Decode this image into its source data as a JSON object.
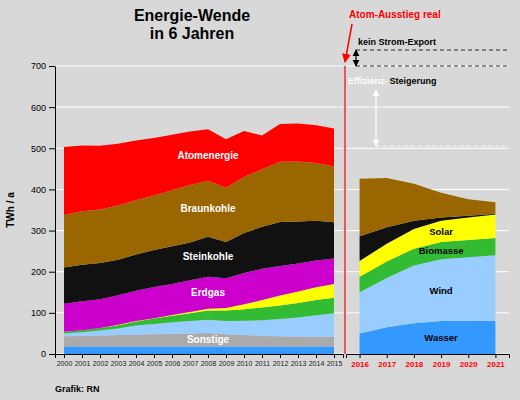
{
  "chart_data": [
    {
      "type": "area",
      "stacked": true,
      "title": "Energie-Wende\nin 6 Jahren",
      "ylabel": "TWh / a",
      "x": [
        2000,
        2001,
        2002,
        2003,
        2004,
        2005,
        2006,
        2007,
        2008,
        2009,
        2010,
        2011,
        2012,
        2013,
        2014,
        2015
      ],
      "xlim": [
        1999.5,
        2015.5
      ],
      "xticks": [
        2000,
        2001,
        2002,
        2003,
        2004,
        2005,
        2006,
        2007,
        2008,
        2009,
        2010,
        2011,
        2012,
        2013,
        2014,
        2015
      ],
      "ylim": [
        0,
        700
      ],
      "yticks": [
        0,
        100,
        200,
        300,
        400,
        500,
        600,
        700
      ],
      "grid": true,
      "series": [
        {
          "color": "#3399ff",
          "values": [
            18,
            18,
            18,
            18,
            18,
            18,
            18,
            18,
            18,
            18,
            18,
            18,
            18,
            18,
            18,
            18
          ]
        },
        {
          "name": "Sonstige",
          "color": "#aaaaaa",
          "values": [
            25,
            26,
            27,
            28,
            29,
            30,
            31,
            32,
            33,
            30,
            28,
            26,
            25,
            24,
            24,
            24
          ]
        },
        {
          "color": "#99ccff",
          "values": [
            7,
            9,
            12,
            16,
            22,
            25,
            28,
            30,
            32,
            32,
            35,
            38,
            42,
            47,
            52,
            57
          ]
        },
        {
          "color": "#33bb33",
          "values": [
            4,
            5,
            6,
            8,
            10,
            13,
            16,
            19,
            23,
            26,
            28,
            31,
            33,
            35,
            37,
            38
          ]
        },
        {
          "color": "#ffff00",
          "values": [
            0,
            0,
            0,
            1,
            1,
            1,
            2,
            3,
            4,
            6,
            12,
            18,
            24,
            28,
            31,
            33
          ]
        },
        {
          "name": "Erdgas",
          "color": "#cc00cc",
          "values": [
            68,
            70,
            70,
            72,
            74,
            76,
            75,
            77,
            78,
            72,
            76,
            76,
            72,
            68,
            65,
            62
          ]
        },
        {
          "name": "Steinkohle",
          "color": "#111111",
          "values": [
            88,
            89,
            88,
            86,
            88,
            90,
            92,
            92,
            97,
            88,
            97,
            102,
            107,
            102,
            97,
            88
          ]
        },
        {
          "name": "Braunkohle",
          "color": "#996600",
          "values": [
            128,
            130,
            130,
            132,
            132,
            132,
            136,
            140,
            136,
            132,
            136,
            140,
            146,
            146,
            140,
            136
          ]
        },
        {
          "name": "Atomenergie",
          "color": "#ff0000",
          "values": [
            165,
            160,
            155,
            150,
            145,
            140,
            135,
            130,
            125,
            118,
            112,
            82,
            92,
            92,
            92,
            92
          ]
        }
      ],
      "annotations": [
        "Grafik: RN"
      ]
    },
    {
      "type": "area",
      "stacked": true,
      "x": [
        2016,
        2017,
        2018,
        2019,
        2020,
        2021
      ],
      "xlim": [
        2015.5,
        2021.5
      ],
      "xticks": [
        2016,
        2017,
        2018,
        2019,
        2020,
        2021
      ],
      "ylim": [
        0,
        700
      ],
      "yticks": [
        0,
        100,
        200,
        300,
        400,
        500,
        600,
        700
      ],
      "grid": true,
      "tick_labels": "x",
      "series": [
        {
          "name": "Wasser",
          "color": "#3399ff",
          "values": [
            50,
            65,
            75,
            80,
            80,
            80
          ]
        },
        {
          "name": "Wind",
          "color": "#99ccff",
          "values": [
            100,
            120,
            140,
            150,
            155,
            160
          ]
        },
        {
          "name": "Biomasse",
          "color": "#33bb33",
          "values": [
            38,
            40,
            41,
            42,
            42,
            42
          ]
        },
        {
          "name": "Solar",
          "color": "#ffff00",
          "values": [
            38,
            43,
            48,
            52,
            55,
            57
          ]
        },
        {
          "color": "#111111",
          "values": [
            60,
            40,
            20,
            8,
            4,
            2
          ]
        },
        {
          "color": "#996600",
          "values": [
            140,
            120,
            90,
            60,
            40,
            28
          ]
        }
      ],
      "annotations": [
        "Atom-Ausstieg real",
        "kein Strom-Export",
        "Effizienz-",
        "Steigerung"
      ]
    }
  ]
}
